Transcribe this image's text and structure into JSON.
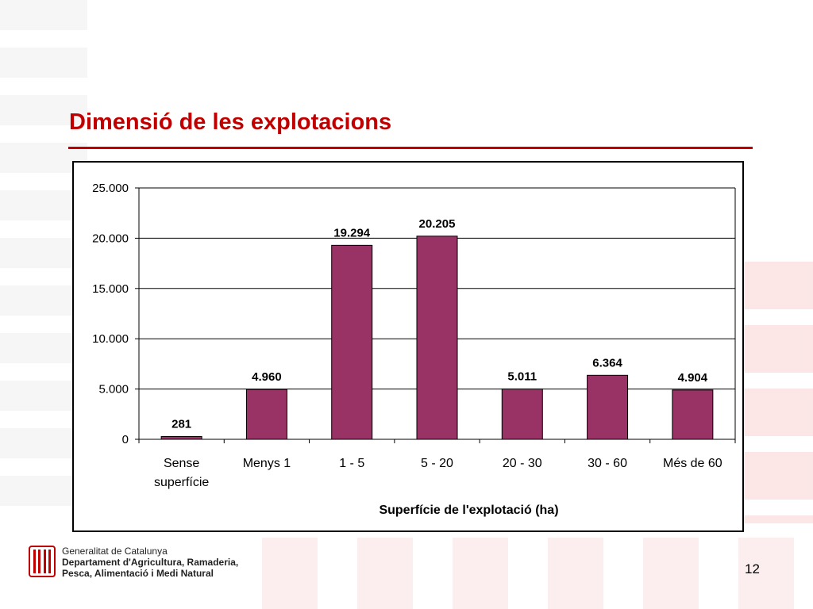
{
  "slide": {
    "title": "Dimensió de les explotacions",
    "page_number": "12"
  },
  "footer": {
    "org": "Generalitat de Catalunya",
    "dept_line1": "Departament d'Agricultura, Ramaderia,",
    "dept_line2": "Pesca, Alimentació i Medi Natural"
  },
  "colors": {
    "title": "#c00000",
    "bar": "#993366",
    "logo": "#c00000"
  },
  "chart_data": {
    "type": "bar",
    "title": "",
    "categories": [
      [
        "Sense",
        "superfície"
      ],
      [
        "Menys 1"
      ],
      [
        "1 - 5"
      ],
      [
        "5 - 20"
      ],
      [
        "20 - 30"
      ],
      [
        "30 - 60"
      ],
      [
        "Més de 60"
      ]
    ],
    "series": [
      {
        "values": [
          281,
          4960,
          19294,
          20205,
          5011,
          6364,
          4904
        ],
        "labels": [
          "281",
          "4.960",
          "19.294",
          "20.205",
          "5.011",
          "6.364",
          "4.904"
        ]
      }
    ],
    "xlabel": "Superfície de l'explotació (ha)",
    "ylabel": "",
    "ylim": [
      0,
      25000
    ],
    "yticks": [
      0,
      5000,
      10000,
      15000,
      20000,
      25000
    ],
    "ytick_labels": [
      "0",
      "5.000",
      "10.000",
      "15.000",
      "20.000",
      "25.000"
    ],
    "grid": true,
    "legend": false
  }
}
